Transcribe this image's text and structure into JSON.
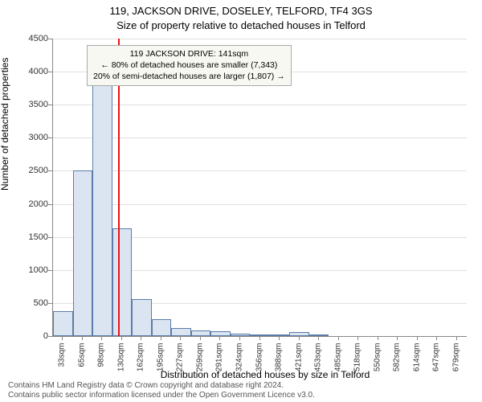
{
  "chart": {
    "type": "histogram",
    "title_line1": "119, JACKSON DRIVE, DOSELEY, TELFORD, TF4 3GS",
    "title_line2": "Size of property relative to detached houses in Telford",
    "ylabel": "Number of detached properties",
    "xlabel": "Distribution of detached houses by size in Telford",
    "ylim": [
      0,
      4500
    ],
    "ytick_step": 500,
    "yticks": [
      0,
      500,
      1000,
      1500,
      2000,
      2500,
      3000,
      3500,
      4000,
      4500
    ],
    "xticks": [
      "33sqm",
      "65sqm",
      "98sqm",
      "130sqm",
      "162sqm",
      "195sqm",
      "227sqm",
      "259sqm",
      "291sqm",
      "324sqm",
      "356sqm",
      "388sqm",
      "421sqm",
      "453sqm",
      "485sqm",
      "518sqm",
      "550sqm",
      "582sqm",
      "614sqm",
      "647sqm",
      "679sqm"
    ],
    "bar_values": [
      380,
      2500,
      3950,
      1630,
      560,
      260,
      120,
      90,
      70,
      40,
      30,
      15,
      60,
      10,
      0,
      0,
      0,
      0,
      0,
      0,
      0
    ],
    "bar_fill": "#dbe5f1",
    "bar_border": "#5b7ca8",
    "grid_color": "#e0e0e0",
    "background_color": "#ffffff",
    "marker_color": "#e11",
    "marker_position_index": 3.34,
    "annotation": {
      "line1": "119 JACKSON DRIVE: 141sqm",
      "line2": "← 80% of detached houses are smaller (7,343)",
      "line3": "20% of semi-detached houses are larger (1,807) →",
      "bg": "#f8f8f2"
    },
    "title_fontsize": 13,
    "label_fontsize": 12,
    "tick_fontsize": 11
  },
  "footer": {
    "line1": "Contains HM Land Registry data © Crown copyright and database right 2024.",
    "line2": "Contains public sector information licensed under the Open Government Licence v3.0."
  }
}
